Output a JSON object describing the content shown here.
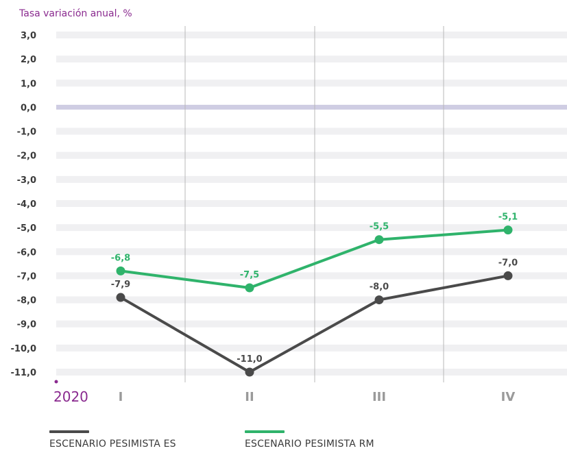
{
  "chart_data": {
    "type": "line",
    "ylabel": "Tasa variación anual, %",
    "xlabel": "",
    "title": "",
    "ylim": [
      -11,
      3
    ],
    "yticks": [
      "3,0",
      "2,0",
      "1,0",
      "0,0",
      "-1,0",
      "-2,0",
      "-3,0",
      "-4,0",
      "-5,0",
      "-6,0",
      "-7,0",
      "-8,0",
      "-9,0",
      "-10,0",
      "-11,0"
    ],
    "year_label": "2020",
    "categories": [
      "I",
      "II",
      "III",
      "IV"
    ],
    "series": [
      {
        "name": "ESCENARIO PESIMISTA ES",
        "values": [
          -7.9,
          -11.0,
          -8.0,
          -7.0
        ],
        "labels": [
          "-7,9",
          "-11,0",
          "-8,0",
          "-7,0"
        ],
        "color": "#4a4a4a"
      },
      {
        "name": "ESCENARIO PESIMISTA RM",
        "values": [
          -6.8,
          -7.5,
          -5.5,
          -5.1
        ],
        "labels": [
          "-6,8",
          "-7,5",
          "-5,5",
          "-5,1"
        ],
        "color": "#2fb36b"
      }
    ],
    "colors": {
      "grid_band": "#f0f0f2",
      "zero_line": "#cfcde3",
      "divider": "#b8b8b8",
      "year_accent": "#8a2a8f",
      "axis_text": "#3a3a3a",
      "category_text": "#9a9a9a"
    },
    "legend_placement": "bottom-left"
  }
}
